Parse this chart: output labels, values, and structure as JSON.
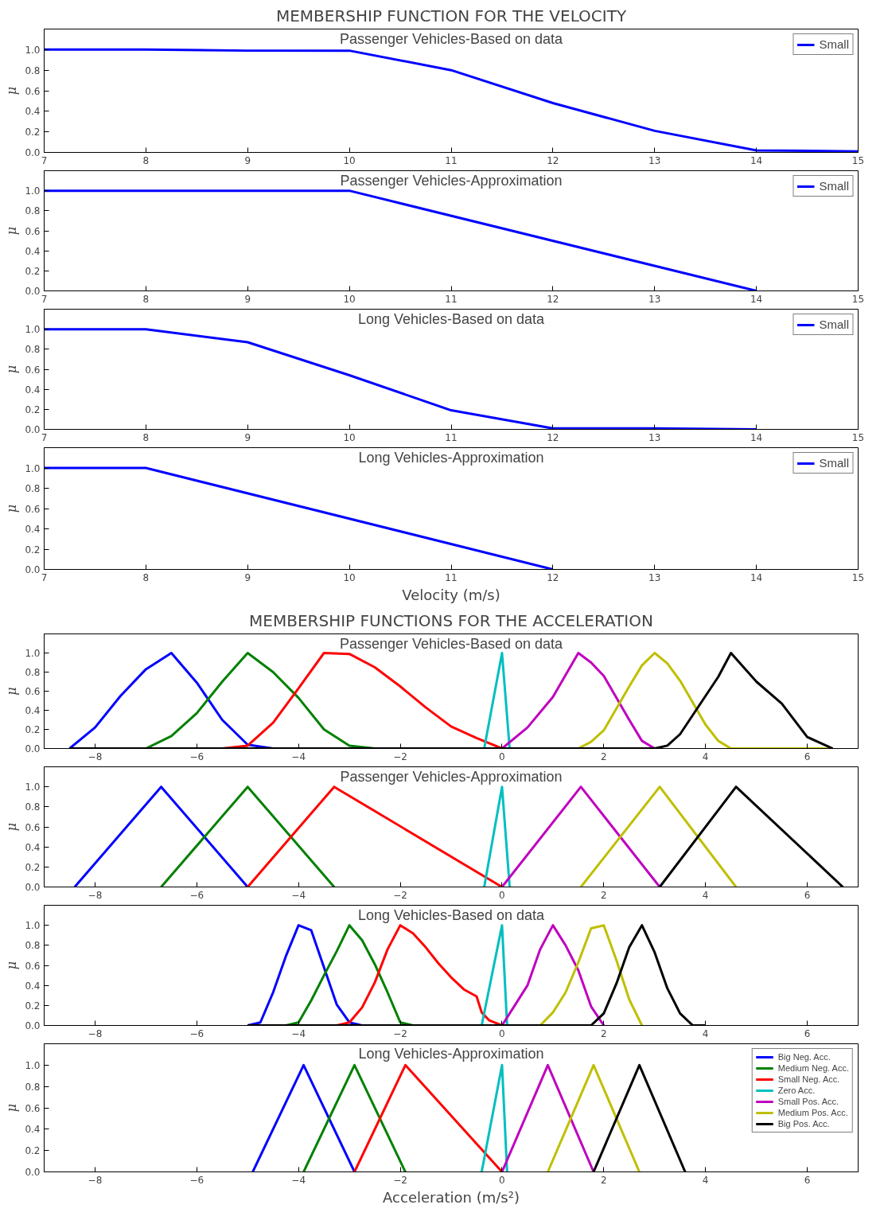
{
  "chart_data": [
    {
      "type": "line",
      "title": "MEMBERSHIP FUNCTION FOR THE VELOCITY",
      "subtitle": "Passenger Vehicles-Based on data",
      "ylabel": "μ",
      "xlim": [
        7,
        15
      ],
      "ylim": [
        0,
        1.2
      ],
      "xticks": [
        7,
        8,
        9,
        10,
        11,
        12,
        13,
        14,
        15
      ],
      "yticks": [
        {
          "value": 0,
          "label": "0.0"
        },
        {
          "value": 0.2,
          "label": "0.2"
        },
        {
          "value": 0.4,
          "label": "0.4"
        },
        {
          "value": 0.6,
          "label": "0.6"
        },
        {
          "value": 0.8,
          "label": "0.8"
        },
        {
          "value": 1.0,
          "label": "1.0"
        }
      ],
      "legend": "top right",
      "series": [
        {
          "name": "Small",
          "color": "#0000ff",
          "x": [
            7,
            8,
            9,
            10,
            11,
            12,
            13,
            14,
            15
          ],
          "values": [
            1.0,
            1.0,
            0.99,
            0.99,
            0.8,
            0.48,
            0.21,
            0.02,
            0.01
          ]
        }
      ]
    },
    {
      "type": "line",
      "subtitle": "Passenger Vehicles-Approximation",
      "ylabel": "μ",
      "xlim": [
        7,
        15
      ],
      "ylim": [
        0,
        1.2
      ],
      "xticks": [
        7,
        8,
        9,
        10,
        11,
        12,
        13,
        14,
        15
      ],
      "yticks": [
        {
          "value": 0,
          "label": "0.0"
        },
        {
          "value": 0.2,
          "label": "0.2"
        },
        {
          "value": 0.4,
          "label": "0.4"
        },
        {
          "value": 0.6,
          "label": "0.6"
        },
        {
          "value": 0.8,
          "label": "0.8"
        },
        {
          "value": 1.0,
          "label": "1.0"
        }
      ],
      "legend": "top right",
      "series": [
        {
          "name": "Small",
          "color": "#0000ff",
          "x": [
            7,
            10,
            14
          ],
          "values": [
            1.0,
            1.0,
            0.0
          ]
        }
      ]
    },
    {
      "type": "line",
      "subtitle": "Long Vehicles-Based on data",
      "ylabel": "μ",
      "xlim": [
        7,
        15
      ],
      "ylim": [
        0,
        1.2
      ],
      "xticks": [
        7,
        8,
        9,
        10,
        11,
        12,
        13,
        14,
        15
      ],
      "yticks": [
        {
          "value": 0,
          "label": "0.0"
        },
        {
          "value": 0.2,
          "label": "0.2"
        },
        {
          "value": 0.4,
          "label": "0.4"
        },
        {
          "value": 0.6,
          "label": "0.6"
        },
        {
          "value": 0.8,
          "label": "0.8"
        },
        {
          "value": 1.0,
          "label": "1.0"
        }
      ],
      "legend": "top right",
      "series": [
        {
          "name": "Small",
          "color": "#0000ff",
          "x": [
            7,
            8,
            9,
            10,
            11,
            12,
            13,
            14
          ],
          "values": [
            1.0,
            1.0,
            0.87,
            0.54,
            0.19,
            0.01,
            0.01,
            0.0
          ]
        }
      ]
    },
    {
      "type": "line",
      "subtitle": "Long Vehicles-Approximation",
      "xlabel": "Velocity (m/s)",
      "ylabel": "μ",
      "xlim": [
        7,
        15
      ],
      "ylim": [
        0,
        1.2
      ],
      "xticks": [
        7,
        8,
        9,
        10,
        11,
        12,
        13,
        14,
        15
      ],
      "yticks": [
        {
          "value": 0,
          "label": "0.0"
        },
        {
          "value": 0.2,
          "label": "0.2"
        },
        {
          "value": 0.4,
          "label": "0.4"
        },
        {
          "value": 0.6,
          "label": "0.6"
        },
        {
          "value": 0.8,
          "label": "0.8"
        },
        {
          "value": 1.0,
          "label": "1.0"
        }
      ],
      "legend": "top right",
      "series": [
        {
          "name": "Small",
          "color": "#0000ff",
          "x": [
            7,
            8,
            12
          ],
          "values": [
            1.0,
            1.0,
            0.0
          ]
        }
      ]
    },
    {
      "type": "line",
      "title": "MEMBERSHIP FUNCTIONS FOR THE ACCELERATION",
      "subtitle": "Passenger Vehicles-Based on data",
      "ylabel": "μ",
      "xlim": [
        -9,
        7
      ],
      "ylim": [
        0,
        1.2
      ],
      "xticks": [
        {
          "value": -8,
          "label": "−8"
        },
        {
          "value": -6,
          "label": "−6"
        },
        {
          "value": -4,
          "label": "−4"
        },
        {
          "value": -2,
          "label": "−2"
        },
        0,
        2,
        4,
        6
      ],
      "yticks": [
        {
          "value": 0,
          "label": "0.0"
        },
        {
          "value": 0.2,
          "label": "0.2"
        },
        {
          "value": 0.4,
          "label": "0.4"
        },
        {
          "value": 0.6,
          "label": "0.6"
        },
        {
          "value": 0.8,
          "label": "0.8"
        },
        {
          "value": 1.0,
          "label": "1.0"
        }
      ],
      "series": [
        {
          "color": "#0000ff",
          "x": [
            -8.5,
            -8,
            -7.5,
            -7,
            -6.5,
            -6,
            -5.5,
            -5,
            -4.5
          ],
          "values": [
            0,
            0.22,
            0.55,
            0.83,
            1.0,
            0.69,
            0.3,
            0.04,
            0
          ]
        },
        {
          "color": "#008000",
          "x": [
            -7,
            -6.5,
            -6,
            -5.5,
            -5,
            -4.5,
            -4,
            -3.5,
            -3,
            -2.5
          ],
          "values": [
            0,
            0.13,
            0.37,
            0.7,
            1.0,
            0.8,
            0.53,
            0.2,
            0.03,
            0
          ]
        },
        {
          "color": "#ff0000",
          "x": [
            -5.5,
            -5,
            -4.5,
            -4,
            -3.5,
            -3,
            -2.5,
            -2,
            -1.5,
            -1,
            -0.5,
            0
          ],
          "values": [
            0,
            0.03,
            0.27,
            0.63,
            1.0,
            0.99,
            0.85,
            0.65,
            0.43,
            0.23,
            0.11,
            0
          ]
        },
        {
          "color": "#00bfbf",
          "x": [
            -0.35,
            0,
            0.15
          ],
          "values": [
            0,
            1.0,
            0
          ]
        },
        {
          "color": "#bf00bf",
          "x": [
            0,
            0.5,
            1,
            1.5,
            1.75,
            2,
            2.5,
            2.75,
            3
          ],
          "values": [
            0,
            0.22,
            0.54,
            1.0,
            0.9,
            0.76,
            0.3,
            0.08,
            0
          ]
        },
        {
          "color": "#bfbf00",
          "x": [
            1.5,
            1.75,
            2,
            2.5,
            2.75,
            3,
            3.25,
            3.5,
            4,
            4.25,
            4.5,
            6.5
          ],
          "values": [
            0,
            0.07,
            0.19,
            0.65,
            0.87,
            1.0,
            0.89,
            0.71,
            0.25,
            0.08,
            0,
            0
          ]
        },
        {
          "color": "#000000",
          "x": [
            -8.5,
            3,
            3.25,
            3.5,
            4,
            4.25,
            4.5,
            5,
            5.5,
            6,
            6.5
          ],
          "values": [
            0,
            0,
            0.03,
            0.15,
            0.55,
            0.75,
            1.0,
            0.7,
            0.47,
            0.12,
            0
          ]
        }
      ]
    },
    {
      "type": "line",
      "subtitle": "Passenger Vehicles-Approximation",
      "ylabel": "μ",
      "xlim": [
        -9,
        7
      ],
      "ylim": [
        0,
        1.2
      ],
      "xticks": [
        {
          "value": -8,
          "label": "−8"
        },
        {
          "value": -6,
          "label": "−6"
        },
        {
          "value": -4,
          "label": "−4"
        },
        {
          "value": -2,
          "label": "−2"
        },
        0,
        2,
        4,
        6
      ],
      "yticks": [
        {
          "value": 0,
          "label": "0.0"
        },
        {
          "value": 0.2,
          "label": "0.2"
        },
        {
          "value": 0.4,
          "label": "0.4"
        },
        {
          "value": 0.6,
          "label": "0.6"
        },
        {
          "value": 0.8,
          "label": "0.8"
        },
        {
          "value": 1.0,
          "label": "1.0"
        }
      ],
      "series": [
        {
          "color": "#0000ff",
          "x": [
            -8.4,
            -6.7,
            -5.0
          ],
          "values": [
            0,
            1.0,
            0
          ]
        },
        {
          "color": "#008000",
          "x": [
            -6.7,
            -5.0,
            -3.3
          ],
          "values": [
            0,
            1.0,
            0
          ]
        },
        {
          "color": "#ff0000",
          "x": [
            -5.0,
            -3.3,
            0
          ],
          "values": [
            0,
            1.0,
            0
          ]
        },
        {
          "color": "#00bfbf",
          "x": [
            -0.35,
            0,
            0.15
          ],
          "values": [
            0,
            1.0,
            0
          ]
        },
        {
          "color": "#bf00bf",
          "x": [
            0,
            1.55,
            3.1
          ],
          "values": [
            0,
            1.0,
            0
          ]
        },
        {
          "color": "#bfbf00",
          "x": [
            1.55,
            3.1,
            4.6
          ],
          "values": [
            0,
            1.0,
            0
          ]
        },
        {
          "color": "#000000",
          "x": [
            3.1,
            4.6,
            6.7
          ],
          "values": [
            0,
            1.0,
            0
          ]
        }
      ]
    },
    {
      "type": "line",
      "subtitle": "Long Vehicles-Based on data",
      "ylabel": "μ",
      "xlim": [
        -9,
        7
      ],
      "ylim": [
        0,
        1.2
      ],
      "xticks": [
        {
          "value": -8,
          "label": "−8"
        },
        {
          "value": -6,
          "label": "−6"
        },
        {
          "value": -4,
          "label": "−4"
        },
        {
          "value": -2,
          "label": "−2"
        },
        0,
        2,
        4,
        6
      ],
      "yticks": [
        {
          "value": 0,
          "label": "0.0"
        },
        {
          "value": 0.2,
          "label": "0.2"
        },
        {
          "value": 0.4,
          "label": "0.4"
        },
        {
          "value": 0.6,
          "label": "0.6"
        },
        {
          "value": 0.8,
          "label": "0.8"
        },
        {
          "value": 1.0,
          "label": "1.0"
        }
      ],
      "series": [
        {
          "color": "#0000ff",
          "x": [
            -5,
            -4.75,
            -4.5,
            -4.25,
            -4,
            -3.75,
            -3.5,
            -3.25,
            -3,
            -2.75
          ],
          "values": [
            0,
            0.03,
            0.33,
            0.69,
            1.0,
            0.95,
            0.58,
            0.21,
            0.03,
            0
          ]
        },
        {
          "color": "#008000",
          "x": [
            -4.25,
            -4,
            -3.75,
            -3.5,
            -3.25,
            -3,
            -2.75,
            -2.5,
            -2.25,
            -2,
            -1.75
          ],
          "values": [
            0,
            0.03,
            0.25,
            0.5,
            0.74,
            1.0,
            0.85,
            0.61,
            0.33,
            0.03,
            0
          ]
        },
        {
          "color": "#ff0000",
          "x": [
            -3.25,
            -3,
            -2.75,
            -2.5,
            -2.25,
            -2,
            -1.75,
            -1.5,
            -1.25,
            -1,
            -0.75,
            -0.5,
            -0.4,
            -0.25,
            0
          ],
          "values": [
            0,
            0.03,
            0.18,
            0.43,
            0.76,
            1.0,
            0.92,
            0.78,
            0.62,
            0.48,
            0.36,
            0.29,
            0.13,
            0.05,
            0
          ]
        },
        {
          "color": "#00bfbf",
          "x": [
            -0.4,
            0,
            0.1
          ],
          "values": [
            0,
            1.0,
            0
          ]
        },
        {
          "color": "#bf00bf",
          "x": [
            0,
            0.25,
            0.5,
            0.75,
            1,
            1.25,
            1.5,
            1.75,
            2
          ],
          "values": [
            0,
            0.2,
            0.4,
            0.76,
            1.0,
            0.8,
            0.55,
            0.19,
            0
          ]
        },
        {
          "color": "#bfbf00",
          "x": [
            0.75,
            1,
            1.25,
            1.5,
            1.75,
            2,
            2.25,
            2.5,
            2.75
          ],
          "values": [
            0,
            0.13,
            0.33,
            0.63,
            0.97,
            1.0,
            0.65,
            0.26,
            0
          ]
        },
        {
          "color": "#000000",
          "x": [
            -5,
            1.75,
            2,
            2.25,
            2.5,
            2.75,
            3,
            3.25,
            3.5,
            3.75,
            4
          ],
          "values": [
            0,
            0,
            0.12,
            0.42,
            0.78,
            1.0,
            0.73,
            0.37,
            0.12,
            0,
            0
          ]
        }
      ]
    },
    {
      "type": "line",
      "subtitle": "Long Vehicles-Approximation",
      "xlabel": "Acceleration (m/s²)",
      "ylabel": "μ",
      "xlim": [
        -9,
        7
      ],
      "ylim": [
        0,
        1.2
      ],
      "xticks": [
        {
          "value": -8,
          "label": "−8"
        },
        {
          "value": -6,
          "label": "−6"
        },
        {
          "value": -4,
          "label": "−4"
        },
        {
          "value": -2,
          "label": "−2"
        },
        0,
        2,
        4,
        6
      ],
      "yticks": [
        {
          "value": 0,
          "label": "0.0"
        },
        {
          "value": 0.2,
          "label": "0.2"
        },
        {
          "value": 0.4,
          "label": "0.4"
        },
        {
          "value": 0.6,
          "label": "0.6"
        },
        {
          "value": 0.8,
          "label": "0.8"
        },
        {
          "value": 1.0,
          "label": "1.0"
        }
      ],
      "legend": "top right",
      "series": [
        {
          "name": "Big Neg. Acc.",
          "color": "#0000ff",
          "x": [
            -4.9,
            -3.9,
            -2.9
          ],
          "values": [
            0,
            1.0,
            0
          ]
        },
        {
          "name": "Medium Neg. Acc.",
          "color": "#008000",
          "x": [
            -3.9,
            -2.9,
            -1.9
          ],
          "values": [
            0,
            1.0,
            0
          ]
        },
        {
          "name": "Small Neg. Acc.",
          "color": "#ff0000",
          "x": [
            -2.9,
            -1.9,
            0
          ],
          "values": [
            0,
            1.0,
            0
          ]
        },
        {
          "name": "Zero Acc.",
          "color": "#00bfbf",
          "x": [
            -0.4,
            0,
            0.1
          ],
          "values": [
            0,
            1.0,
            0
          ]
        },
        {
          "name": "Small Pos. Acc.",
          "color": "#bf00bf",
          "x": [
            0,
            0.9,
            1.8
          ],
          "values": [
            0,
            1.0,
            0
          ]
        },
        {
          "name": "Medium Pos. Acc.",
          "color": "#bfbf00",
          "x": [
            0.9,
            1.8,
            2.7
          ],
          "values": [
            0,
            1.0,
            0
          ]
        },
        {
          "name": "Big Pos. Acc.",
          "color": "#000000",
          "x": [
            1.8,
            2.7,
            3.6
          ],
          "values": [
            0,
            1.0,
            0
          ]
        }
      ]
    }
  ]
}
